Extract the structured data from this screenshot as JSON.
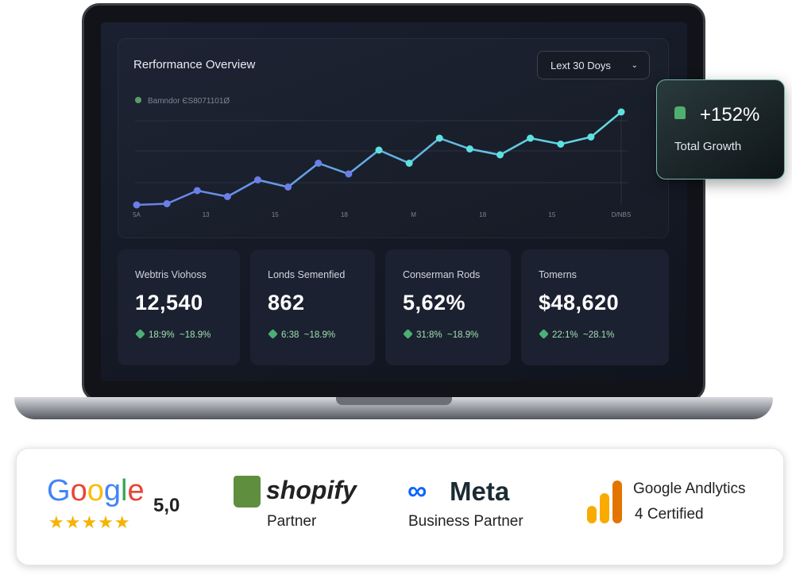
{
  "dashboard": {
    "title": "Rerformance Overview",
    "range": "Lext 30 Doys",
    "legend": "Bamndor ЄS8071101Ø",
    "chart": {
      "type": "line",
      "values": [
        8,
        9,
        20,
        15,
        29,
        23,
        43,
        34,
        54,
        43,
        64,
        55,
        50,
        64,
        59,
        65,
        86
      ],
      "ylim": [
        0,
        100
      ],
      "color_start": "#6a7fe8",
      "color_end": "#5fe0e0",
      "x_labels": [
        "5A",
        "13",
        "15",
        "18",
        "M",
        "18",
        "15",
        "D/NBS"
      ]
    },
    "growth": {
      "value": "+152%",
      "label": "Total Growth"
    },
    "metrics": [
      {
        "label": "Webtris Viohoss",
        "value": "12,540",
        "change": "18:9%",
        "change2": "~18.9%"
      },
      {
        "label": "Londs Semenfied",
        "value": "862",
        "change": "6:38",
        "change2": "~18.9%"
      },
      {
        "label": "Conserman Rods",
        "value": "5,62%",
        "change": "31:8%",
        "change2": "~18.9%"
      },
      {
        "label": "Tomerns",
        "value": "$48,620",
        "change": "22:1%",
        "change2": "~28.1%"
      }
    ]
  },
  "badges": [
    {
      "name": "Google",
      "detail": "5,0"
    },
    {
      "name": "shopify",
      "detail": "Partner"
    },
    {
      "name": "Meta",
      "detail": "Business Partner"
    },
    {
      "name": "Google Andlytics",
      "detail": "4 Certified"
    }
  ]
}
